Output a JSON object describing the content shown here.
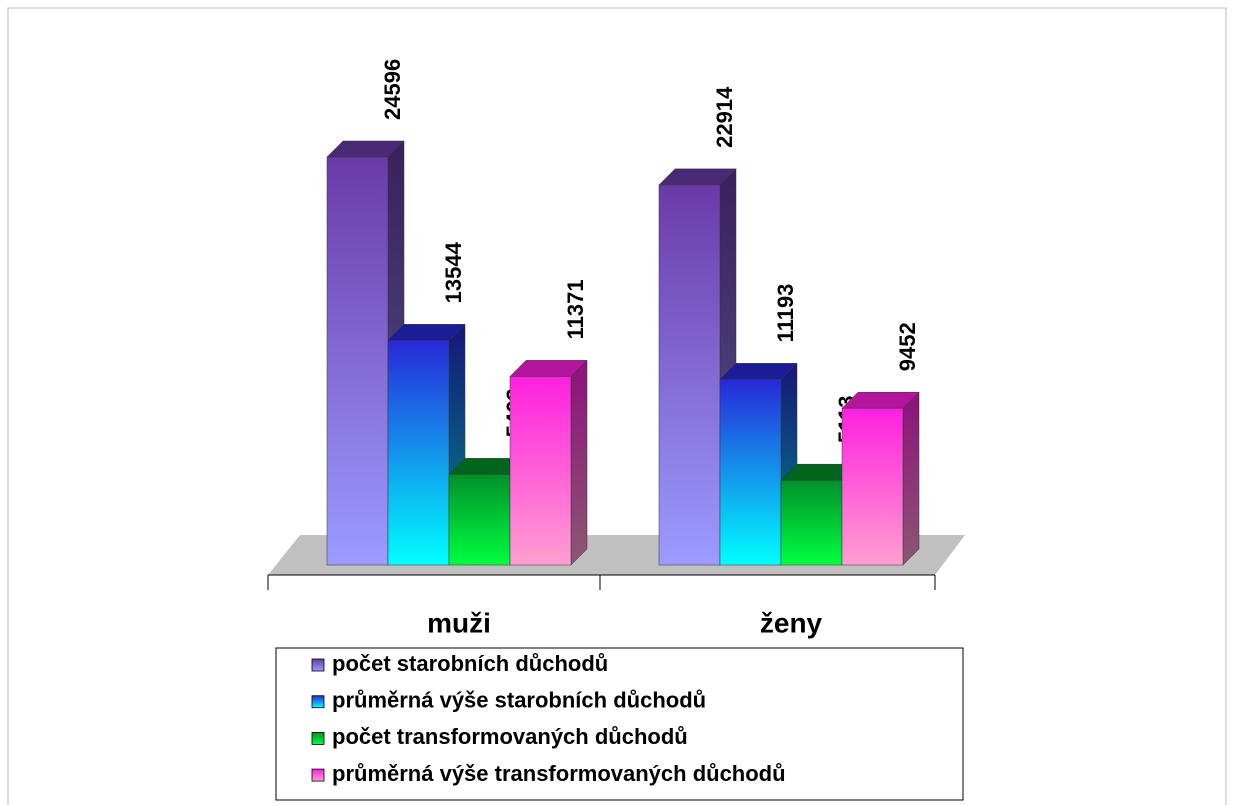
{
  "chart_data": {
    "type": "bar3d",
    "categories": [
      "muži",
      "ženy"
    ],
    "series": [
      {
        "name": "počet starobních důchodů",
        "color": "#6a3aa8",
        "values": [
          24596,
          22914
        ]
      },
      {
        "name": "průměrná výše starobních důchodů",
        "color": "#2828d8",
        "values": [
          13544,
          11193
        ]
      },
      {
        "name": "počet transformovaných důchodů",
        "color": "#00902a",
        "values": [
          5463,
          5113
        ]
      },
      {
        "name": "průměrná výše transformovaných důchodů",
        "color": "#ff20e0",
        "values": [
          11371,
          9452
        ]
      }
    ],
    "legend": "bottom"
  }
}
